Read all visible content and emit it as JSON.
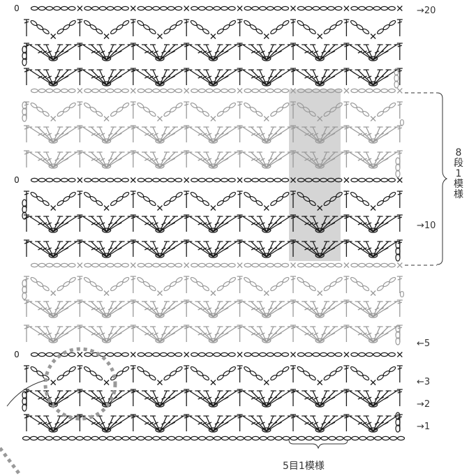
{
  "row_labels": {
    "r20": "→20",
    "r10": "→10",
    "r5": "←5",
    "r3": "←3",
    "r2": "→2",
    "r1": "→1"
  },
  "repeat_rows": {
    "number": "8",
    "chars": [
      "段",
      "1",
      "模",
      "様"
    ]
  },
  "repeat_stitches": {
    "label": "5目1模様"
  },
  "symbols": {
    "chain": "○",
    "single_crochet": "×",
    "start_mark": "0",
    "double_crochet": "T"
  },
  "colors": {
    "stitch_black": "#1a1a1a",
    "stitch_gray": "#9a9a9a",
    "highlight": "#d5d5d5",
    "dashed_circle": "#999999"
  }
}
